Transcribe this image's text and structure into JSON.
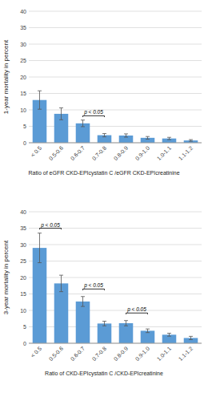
{
  "chart_data": [
    {
      "type": "bar",
      "categories": [
        "< 0.5",
        "0.5-0.6",
        "0.6-0.7",
        "0.7-0.8",
        "0.8-0.9",
        "0.9-1.0",
        "1.0-1.1",
        "1.1-1.2"
      ],
      "values": [
        13.0,
        8.8,
        5.9,
        2.3,
        2.2,
        1.5,
        1.3,
        0.7
      ],
      "errors": [
        2.8,
        1.8,
        1.0,
        0.5,
        0.5,
        0.4,
        0.35,
        0.25
      ],
      "color": "#5b9bd5",
      "ylabel": "1-year mortality in percent",
      "xlabel": "Ratio of eGFR CKD-EPIcystatin C /eGFR CKD-EPIcreatinine",
      "ylim": [
        0,
        40
      ],
      "yticks": [
        0,
        5,
        10,
        15,
        20,
        25,
        30,
        35,
        40
      ],
      "grid": true,
      "annotations": [
        {
          "text": "p < 0.05",
          "from": "0.6-0.7",
          "to": "0.7-0.8",
          "y": 8.2
        }
      ]
    },
    {
      "type": "bar",
      "categories": [
        "< 0.5",
        "0.5-0.6",
        "0.6-0.7",
        "0.7-0.8",
        "0.8-0.9",
        "0.9-1.0",
        "1.0-1.1",
        "1.1-1.2"
      ],
      "values": [
        29.0,
        18.2,
        12.7,
        6.0,
        6.1,
        3.8,
        2.6,
        1.6
      ],
      "errors": [
        4.5,
        2.5,
        1.5,
        0.7,
        0.8,
        0.55,
        0.45,
        0.5
      ],
      "color": "#5b9bd5",
      "ylabel": "3-year mortality in percent",
      "xlabel": "Ratio of CKD-EPIcystatin C /CKD-EPIcreatinine",
      "ylim": [
        0,
        40
      ],
      "yticks": [
        0,
        5,
        10,
        15,
        20,
        25,
        30,
        35,
        40
      ],
      "grid": true,
      "annotations": [
        {
          "text": "p < 0.05",
          "from": "< 0.5",
          "to": "0.5-0.6",
          "y": 35.0
        },
        {
          "text": "p < 0.05",
          "from": "0.6-0.7",
          "to": "0.7-0.8",
          "y": 16.5
        },
        {
          "text": "p < 0.05",
          "from": "0.8-0.9",
          "to": "0.9-1.0",
          "y": 9.2
        }
      ]
    }
  ]
}
